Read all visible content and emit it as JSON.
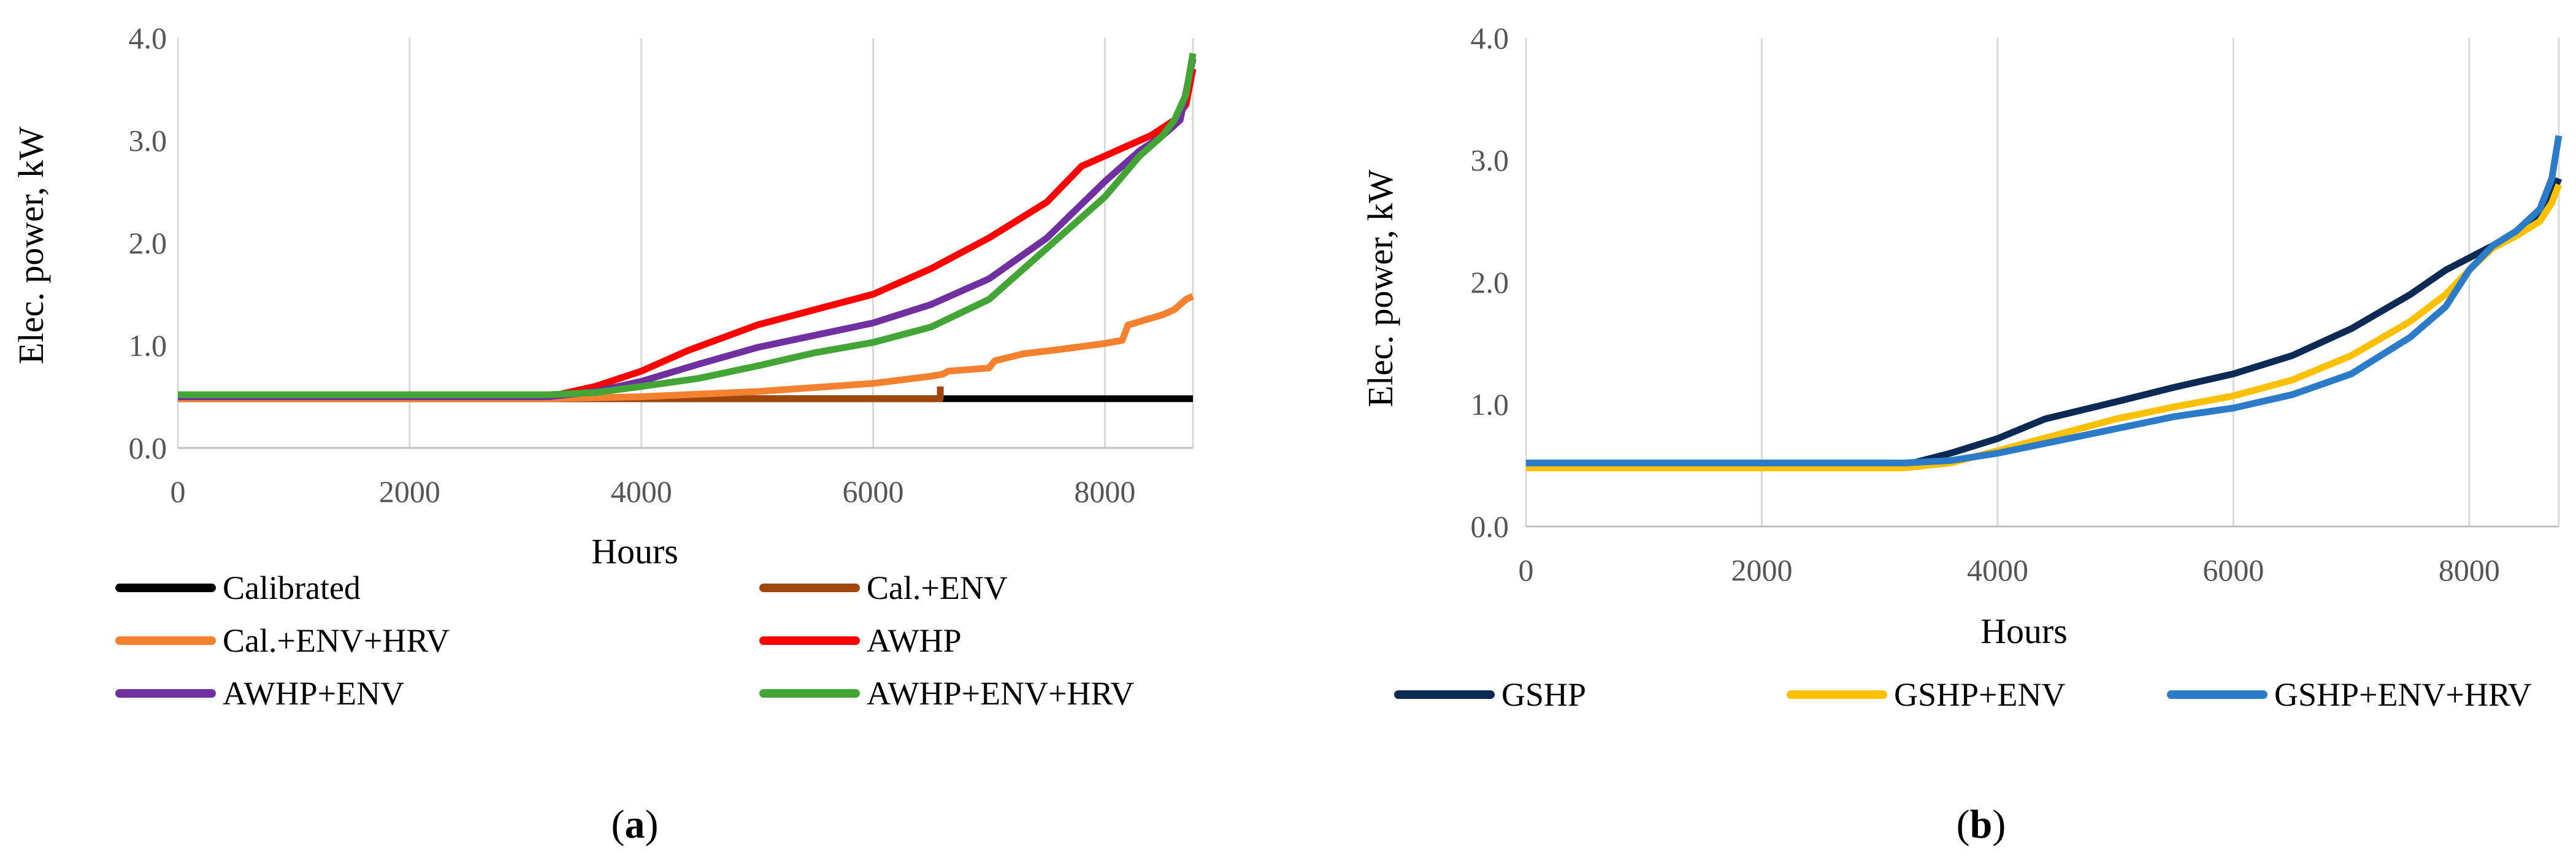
{
  "chart_data": [
    {
      "type": "line",
      "panel_label": "(a)",
      "panel_letter": "a",
      "xlabel": "Hours",
      "ylabel": "Elec. power, kW",
      "xlim": [
        0,
        8760
      ],
      "ylim": [
        0,
        4
      ],
      "xticks": [
        "0",
        "2000",
        "4000",
        "6000",
        "8000"
      ],
      "yticks": [
        "0.0",
        "1.0",
        "2.0",
        "3.0",
        "4.0"
      ],
      "grid": "vertical",
      "legend_position": "bottom",
      "series": [
        {
          "name": "Calibrated",
          "color": "#000000",
          "x": [
            0,
            3200,
            6550,
            6550,
            8760
          ],
          "y": [
            0.48,
            0.48,
            0.48,
            0.48,
            0.48
          ]
        },
        {
          "name": "Cal.+ENV",
          "color": "#9E480E",
          "x": [
            0,
            3200,
            6580,
            6580
          ],
          "y": [
            0.48,
            0.48,
            0.48,
            0.6
          ]
        },
        {
          "name": "Cal.+ENV+HRV",
          "color": "#F4812F",
          "x": [
            0,
            3200,
            4000,
            5000,
            6000,
            6500,
            6600,
            6650,
            7000,
            7050,
            7300,
            7600,
            8000,
            8150,
            8200,
            8500,
            8600,
            8700,
            8760
          ],
          "y": [
            0.48,
            0.48,
            0.5,
            0.55,
            0.63,
            0.7,
            0.72,
            0.75,
            0.78,
            0.85,
            0.92,
            0.96,
            1.02,
            1.05,
            1.2,
            1.3,
            1.35,
            1.45,
            1.48
          ]
        },
        {
          "name": "AWHP",
          "color": "#FF0000",
          "x": [
            0,
            3200,
            3600,
            4000,
            4400,
            5000,
            5500,
            6000,
            6500,
            7000,
            7500,
            7800,
            8000,
            8200,
            8400,
            8600,
            8700,
            8760
          ],
          "y": [
            0.5,
            0.5,
            0.6,
            0.75,
            0.95,
            1.2,
            1.35,
            1.5,
            1.75,
            2.05,
            2.4,
            2.75,
            2.85,
            2.95,
            3.05,
            3.2,
            3.35,
            3.7
          ]
        },
        {
          "name": "AWHP+ENV",
          "color": "#7030A0",
          "x": [
            0,
            3200,
            3600,
            4000,
            4500,
            5000,
            5500,
            6000,
            6500,
            7000,
            7500,
            8000,
            8300,
            8500,
            8650,
            8760
          ],
          "y": [
            0.5,
            0.5,
            0.55,
            0.65,
            0.82,
            0.98,
            1.1,
            1.22,
            1.4,
            1.65,
            2.05,
            2.6,
            2.9,
            3.05,
            3.2,
            3.8
          ]
        },
        {
          "name": "AWHP+ENV+HRV",
          "color": "#43A535",
          "x": [
            0,
            3200,
            3600,
            4000,
            4500,
            5000,
            5500,
            6000,
            6500,
            7000,
            7500,
            8000,
            8300,
            8500,
            8600,
            8700,
            8760
          ],
          "y": [
            0.52,
            0.52,
            0.54,
            0.6,
            0.68,
            0.8,
            0.93,
            1.03,
            1.18,
            1.45,
            1.95,
            2.45,
            2.85,
            3.05,
            3.2,
            3.45,
            3.85
          ]
        }
      ]
    },
    {
      "type": "line",
      "panel_label": "(b)",
      "panel_letter": "b",
      "xlabel": "Hours",
      "ylabel": "Elec. power, kW",
      "xlim": [
        0,
        8760
      ],
      "ylim": [
        0,
        4
      ],
      "xticks": [
        "0",
        "2000",
        "4000",
        "6000",
        "8000"
      ],
      "yticks": [
        "0.0",
        "1.0",
        "2.0",
        "3.0",
        "4.0"
      ],
      "grid": "vertical",
      "legend_position": "bottom",
      "series": [
        {
          "name": "GSHP",
          "color": "#0D2A55",
          "x": [
            0,
            3200,
            3600,
            4000,
            4400,
            5000,
            5500,
            6000,
            6500,
            7000,
            7500,
            7800,
            8000,
            8200,
            8400,
            8600,
            8700,
            8760
          ],
          "y": [
            0.5,
            0.5,
            0.6,
            0.72,
            0.88,
            1.02,
            1.14,
            1.25,
            1.4,
            1.62,
            1.9,
            2.1,
            2.2,
            2.3,
            2.4,
            2.55,
            2.7,
            2.85
          ]
        },
        {
          "name": "GSHP+ENV",
          "color": "#FFC000",
          "x": [
            0,
            3200,
            3600,
            4000,
            4500,
            5000,
            5500,
            6000,
            6500,
            7000,
            7500,
            7800,
            8000,
            8200,
            8400,
            8600,
            8700,
            8760
          ],
          "y": [
            0.48,
            0.48,
            0.52,
            0.62,
            0.75,
            0.88,
            0.98,
            1.07,
            1.2,
            1.4,
            1.68,
            1.9,
            2.1,
            2.28,
            2.38,
            2.5,
            2.65,
            2.8
          ]
        },
        {
          "name": "GSHP+ENV+HRV",
          "color": "#2B7BC9",
          "x": [
            0,
            3200,
            3600,
            4000,
            4500,
            5000,
            5500,
            6000,
            6500,
            7000,
            7500,
            7800,
            8000,
            8200,
            8400,
            8600,
            8700,
            8760
          ],
          "y": [
            0.52,
            0.52,
            0.54,
            0.6,
            0.7,
            0.8,
            0.9,
            0.97,
            1.08,
            1.25,
            1.55,
            1.8,
            2.1,
            2.3,
            2.42,
            2.6,
            2.85,
            3.2
          ]
        }
      ]
    }
  ]
}
